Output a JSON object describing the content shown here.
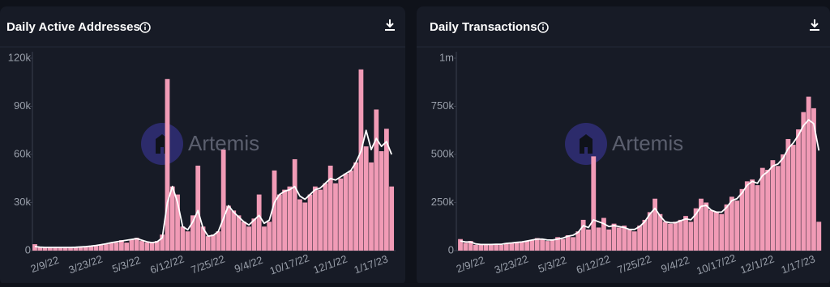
{
  "chart_data": [
    {
      "type": "bar",
      "title": "Daily Active Addresses",
      "watermark": "Artemis",
      "categories": [
        null,
        null,
        "2/9/22",
        null,
        null,
        null,
        null,
        null,
        null,
        null,
        "3/23/22",
        null,
        null,
        null,
        null,
        null,
        null,
        null,
        "5/3/22",
        null,
        null,
        null,
        null,
        null,
        null,
        null,
        "6/12/22",
        null,
        null,
        null,
        null,
        null,
        null,
        null,
        "7/25/22",
        null,
        null,
        null,
        null,
        null,
        null,
        null,
        "9/4/22",
        null,
        null,
        null,
        null,
        null,
        null,
        null,
        "10/17/22",
        null,
        null,
        null,
        null,
        null,
        null,
        null,
        "12/1/22",
        null,
        null,
        null,
        null,
        null,
        null,
        null,
        "1/17/23",
        null,
        null,
        null,
        null
      ],
      "ylim": [
        0,
        120000
      ],
      "yticks": [
        0,
        {
          "value": 30000,
          "label": "30k"
        },
        {
          "value": 60000,
          "label": "60k"
        },
        {
          "value": 90000,
          "label": "90k"
        },
        {
          "value": 120000,
          "label": "120k"
        }
      ],
      "series": [
        {
          "type": "bar",
          "color": "#f19bb6",
          "values": [
            4000,
            2000,
            2000,
            2000,
            1800,
            2000,
            2000,
            1800,
            2000,
            2200,
            2500,
            2500,
            3000,
            3500,
            4000,
            5000,
            5000,
            6500,
            5000,
            7000,
            8000,
            6000,
            5000,
            5000,
            6000,
            10000,
            107000,
            40000,
            35000,
            15000,
            12000,
            22000,
            53000,
            15000,
            9000,
            10000,
            12000,
            63000,
            28000,
            25000,
            22000,
            18000,
            15000,
            20000,
            35000,
            15000,
            18000,
            50000,
            35000,
            38000,
            40000,
            57000,
            32000,
            30000,
            35000,
            40000,
            38000,
            42000,
            53000,
            42000,
            45000,
            48000,
            50000,
            55000,
            113000,
            65000,
            55000,
            88000,
            62000,
            76000,
            40000
          ]
        },
        {
          "type": "line",
          "color": "#ffffff",
          "values": [
            2500,
            2200,
            2000,
            2000,
            2000,
            2000,
            2000,
            2000,
            2100,
            2300,
            2500,
            2800,
            3200,
            3700,
            4300,
            5000,
            5500,
            6000,
            6500,
            7000,
            7500,
            6500,
            5500,
            5000,
            5500,
            8000,
            30000,
            40000,
            30000,
            15000,
            13000,
            18000,
            25000,
            14000,
            9000,
            9500,
            12000,
            20000,
            28000,
            24000,
            21000,
            18000,
            16000,
            19000,
            22000,
            17000,
            19000,
            30000,
            35000,
            37000,
            38000,
            40000,
            34000,
            32000,
            35000,
            38000,
            39000,
            42000,
            45000,
            44000,
            46000,
            48000,
            50000,
            55000,
            62000,
            75000,
            63000,
            70000,
            65000,
            68000,
            60000
          ]
        }
      ]
    },
    {
      "type": "bar",
      "title": "Daily Transactions",
      "watermark": "Artemis",
      "categories": [
        null,
        null,
        "2/9/22",
        null,
        null,
        null,
        null,
        null,
        null,
        null,
        "3/23/22",
        null,
        null,
        null,
        null,
        null,
        null,
        null,
        "5/3/22",
        null,
        null,
        null,
        null,
        null,
        null,
        null,
        "6/12/22",
        null,
        null,
        null,
        null,
        null,
        null,
        null,
        "7/25/22",
        null,
        null,
        null,
        null,
        null,
        null,
        null,
        "9/4/22",
        null,
        null,
        null,
        null,
        null,
        null,
        null,
        "10/17/22",
        null,
        null,
        null,
        null,
        null,
        null,
        null,
        "12/1/22",
        null,
        null,
        null,
        null,
        null,
        null,
        null,
        "1/17/23",
        null,
        null,
        null,
        null
      ],
      "ylim": [
        0,
        1000000
      ],
      "yticks": [
        0,
        {
          "value": 250000,
          "label": "250k"
        },
        {
          "value": 500000,
          "label": "500k"
        },
        {
          "value": 750000,
          "label": "750k"
        },
        {
          "value": 1000000,
          "label": "1m"
        }
      ],
      "series": [
        {
          "type": "bar",
          "color": "#f19bb6",
          "values": [
            60000,
            40000,
            50000,
            30000,
            30000,
            35000,
            30000,
            35000,
            30000,
            40000,
            40000,
            45000,
            45000,
            50000,
            55000,
            65000,
            60000,
            50000,
            55000,
            70000,
            60000,
            80000,
            70000,
            100000,
            160000,
            110000,
            490000,
            120000,
            170000,
            110000,
            140000,
            120000,
            130000,
            110000,
            100000,
            130000,
            160000,
            200000,
            270000,
            190000,
            150000,
            140000,
            150000,
            160000,
            180000,
            150000,
            220000,
            270000,
            250000,
            210000,
            200000,
            190000,
            240000,
            280000,
            260000,
            320000,
            360000,
            370000,
            340000,
            430000,
            420000,
            470000,
            440000,
            500000,
            580000,
            550000,
            630000,
            720000,
            800000,
            740000,
            150000
          ]
        },
        {
          "type": "line",
          "color": "#ffffff",
          "values": [
            50000,
            45000,
            45000,
            35000,
            32000,
            32000,
            32000,
            33000,
            33000,
            38000,
            40000,
            43000,
            45000,
            50000,
            55000,
            60000,
            60000,
            55000,
            55000,
            60000,
            65000,
            75000,
            80000,
            95000,
            130000,
            120000,
            160000,
            150000,
            140000,
            125000,
            130000,
            125000,
            120000,
            110000,
            110000,
            125000,
            150000,
            190000,
            220000,
            180000,
            150000,
            145000,
            145000,
            155000,
            165000,
            160000,
            190000,
            230000,
            235000,
            210000,
            200000,
            200000,
            225000,
            260000,
            270000,
            300000,
            340000,
            360000,
            350000,
            390000,
            410000,
            440000,
            450000,
            480000,
            530000,
            560000,
            600000,
            650000,
            680000,
            660000,
            520000
          ]
        }
      ]
    }
  ]
}
